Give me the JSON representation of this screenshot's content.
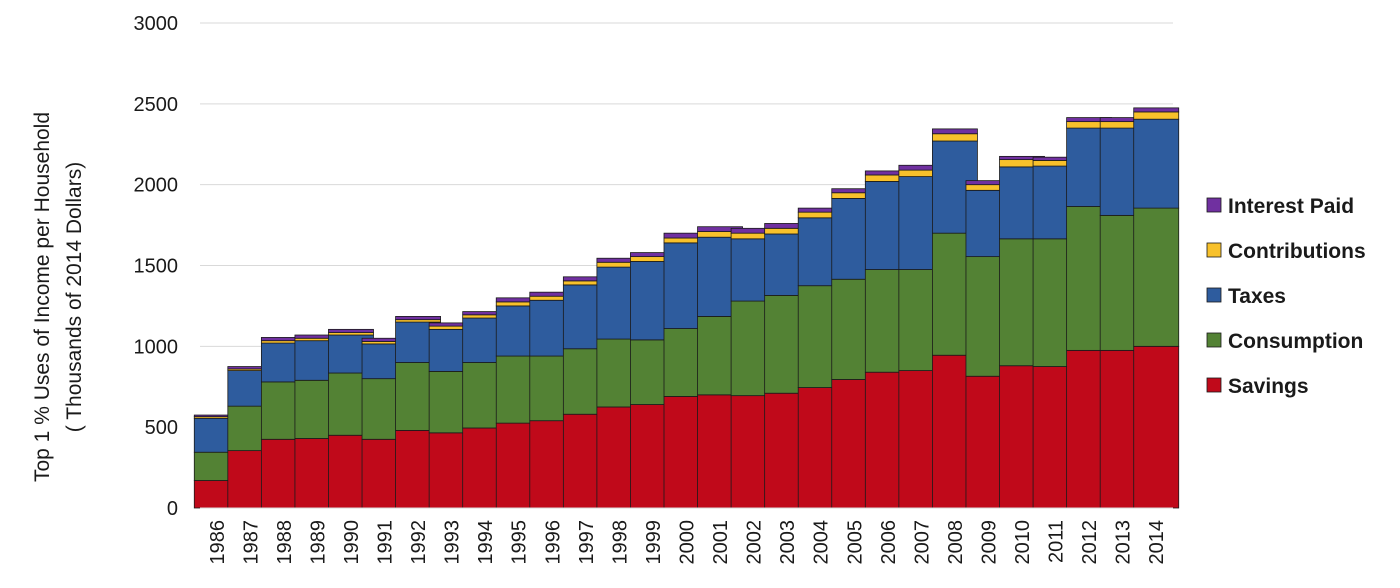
{
  "chart_data": {
    "type": "bar",
    "stacked": true,
    "title": "",
    "ylabel_line1": "Top 1 % Uses of Income per Household",
    "ylabel_line2": "( Thousands of 2014 Dollars)",
    "ylim": [
      0,
      3000
    ],
    "yticks": [
      "0",
      "500",
      "1000",
      "1500",
      "2000",
      "2500",
      "3000"
    ],
    "grid": true,
    "legend_position": "right",
    "categories": [
      "1986",
      "1987",
      "1988",
      "1989",
      "1990",
      "1991",
      "1992",
      "1993",
      "1994",
      "1995",
      "1996",
      "1997",
      "1998",
      "1999",
      "2000",
      "2001",
      "2002",
      "2003",
      "2004",
      "2005",
      "2006",
      "2007",
      "2008",
      "2009",
      "2010",
      "2011",
      "2012",
      "2013",
      "2014"
    ],
    "series": [
      {
        "name": "Savings",
        "color": "#c0091a",
        "values": [
          170,
          355,
          425,
          430,
          450,
          425,
          480,
          465,
          495,
          525,
          540,
          580,
          625,
          640,
          690,
          700,
          695,
          710,
          745,
          795,
          840,
          850,
          945,
          815,
          880,
          875,
          975,
          975,
          1000
        ]
      },
      {
        "name": "Consumption",
        "color": "#538234",
        "values": [
          175,
          275,
          355,
          360,
          385,
          375,
          420,
          380,
          405,
          415,
          400,
          405,
          420,
          400,
          420,
          485,
          585,
          605,
          630,
          620,
          635,
          625,
          755,
          740,
          785,
          790,
          890,
          835,
          855
        ]
      },
      {
        "name": "Taxes",
        "color": "#2e5c9e",
        "values": [
          210,
          220,
          240,
          245,
          235,
          215,
          250,
          260,
          275,
          310,
          345,
          395,
          445,
          485,
          530,
          490,
          385,
          380,
          420,
          500,
          545,
          575,
          570,
          410,
          445,
          450,
          485,
          540,
          550
        ]
      },
      {
        "name": "Contributions",
        "color": "#f8c12b",
        "values": [
          10,
          10,
          15,
          15,
          15,
          15,
          15,
          20,
          20,
          25,
          25,
          25,
          30,
          30,
          30,
          35,
          35,
          35,
          35,
          35,
          40,
          40,
          45,
          35,
          45,
          35,
          40,
          40,
          45
        ]
      },
      {
        "name": "Interest Paid",
        "color": "#7030a0",
        "values": [
          10,
          15,
          20,
          20,
          20,
          20,
          20,
          20,
          20,
          25,
          25,
          25,
          25,
          25,
          30,
          30,
          30,
          30,
          25,
          25,
          25,
          30,
          30,
          25,
          20,
          20,
          25,
          25,
          25
        ]
      }
    ]
  }
}
